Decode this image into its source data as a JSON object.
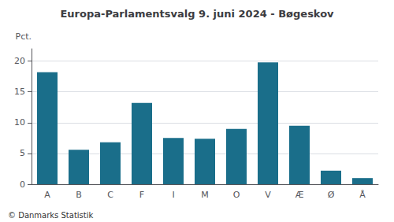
{
  "chart_data": {
    "type": "bar",
    "title": "Europa-Parlamentsvalg 9. juni 2024 - Bøgeskov",
    "ylabel": "Pct.",
    "footer": "© Danmarks Statistik",
    "categories": [
      "A",
      "B",
      "C",
      "F",
      "I",
      "M",
      "O",
      "V",
      "Æ",
      "Ø",
      "Å"
    ],
    "values": [
      18.2,
      5.6,
      6.8,
      13.2,
      7.5,
      7.4,
      9.0,
      19.8,
      9.5,
      2.2,
      1.0
    ],
    "color": "#1a6e8a",
    "ylim": [
      0,
      22
    ],
    "yticks": [
      0,
      5,
      10,
      15,
      20
    ],
    "grid": true
  }
}
